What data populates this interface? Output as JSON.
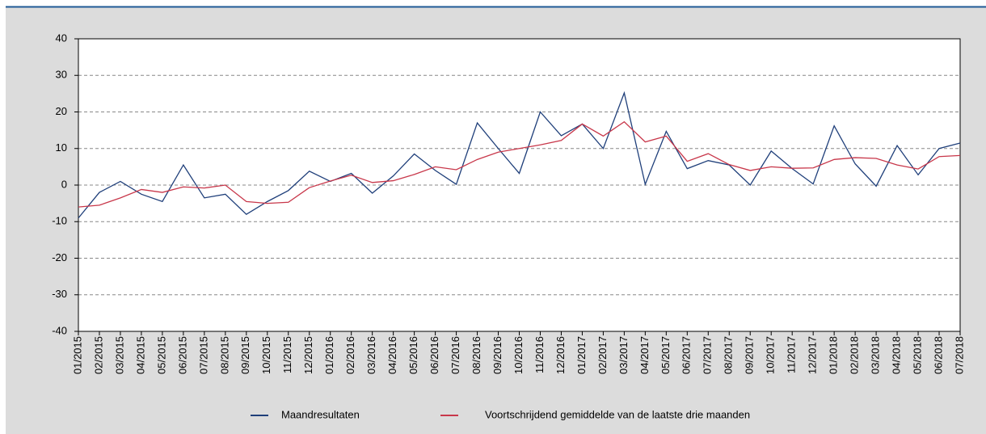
{
  "chart_data": {
    "type": "line",
    "categories": [
      "01/2015",
      "02/2015",
      "03/2015",
      "04/2015",
      "05/2015",
      "06/2015",
      "07/2015",
      "08/2015",
      "09/2015",
      "10/2015",
      "11/2015",
      "12/2015",
      "01/2016",
      "02/2016",
      "03/2016",
      "04/2016",
      "05/2016",
      "06/2016",
      "07/2016",
      "08/2016",
      "09/2016",
      "10/2016",
      "11/2016",
      "12/2016",
      "01/2017",
      "02/2017",
      "03/2017",
      "04/2017",
      "05/2017",
      "06/2017",
      "07/2017",
      "08/2017",
      "09/2017",
      "10/2017",
      "11/2017",
      "12/2017",
      "01/2018",
      "02/2018",
      "03/2018",
      "04/2018",
      "05/2018",
      "06/2018",
      "07/2018"
    ],
    "series": [
      {
        "name": "Maandresultaten",
        "color": "#1f3f7a",
        "values": [
          -9,
          -2,
          1,
          -2.5,
          -4.5,
          5.5,
          -3.5,
          -2.5,
          -8,
          -4.5,
          -1.5,
          3.8,
          1,
          3.2,
          -2.2,
          2.5,
          8.5,
          4,
          0.2,
          17,
          10,
          3.2,
          20,
          13.5,
          16.7,
          10,
          25.2,
          0.2,
          14.7,
          4.5,
          6.7,
          5.5,
          0,
          9.3,
          4.5,
          0.3,
          16.2,
          5.8,
          -0.3,
          10.8,
          2.8,
          10,
          11.5
        ]
      },
      {
        "name": "Voortschrijdend gemiddelde van de laatste drie maanden",
        "color": "#c8374a",
        "values": [
          -6,
          -5.5,
          -3.5,
          -1.2,
          -2,
          -0.5,
          -0.8,
          0,
          -4.5,
          -5,
          -4.7,
          -0.7,
          1.1,
          2.7,
          0.7,
          1.2,
          2.9,
          5,
          4.2,
          7,
          9,
          10,
          11,
          12.2,
          16.7,
          13.4,
          17.3,
          11.8,
          13.4,
          6.5,
          8.6,
          5.6,
          4,
          5,
          4.6,
          4.7,
          7,
          7.5,
          7.3,
          5.5,
          4.4,
          7.8,
          8.1
        ]
      }
    ],
    "ylim": [
      -40,
      40
    ],
    "yticks": [
      -40,
      -30,
      -20,
      -10,
      0,
      10,
      20,
      30,
      40
    ],
    "grid": true
  }
}
